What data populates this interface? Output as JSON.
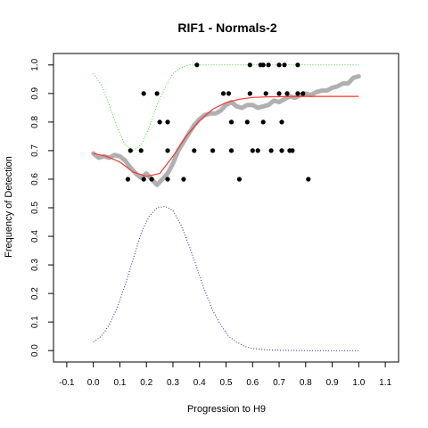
{
  "chart_data": {
    "type": "scatter",
    "title": "RIF1 - Normals-2",
    "xlabel": "Progression to H9",
    "ylabel": "Frequency of Detection",
    "xlim": [
      -0.15,
      1.15
    ],
    "ylim": [
      -0.04,
      1.04
    ],
    "x_ticks": [
      "-0.1",
      "0.0",
      "0.1",
      "0.2",
      "0.3",
      "0.4",
      "0.5",
      "0.6",
      "0.7",
      "0.8",
      "0.9",
      "1.0",
      "1.1"
    ],
    "y_ticks": [
      "0.0",
      "0.1",
      "0.2",
      "0.3",
      "0.4",
      "0.5",
      "0.6",
      "0.7",
      "0.8",
      "0.9",
      "1.0"
    ],
    "grid": false,
    "colors": {
      "points": "#000000",
      "moving_average": "#b0b0b0",
      "fit": "#ff3030",
      "upper_bound": "#33dd33",
      "density": "#2222cc"
    },
    "points": [
      [
        0.13,
        0.6
      ],
      [
        0.14,
        0.7
      ],
      [
        0.19,
        0.6
      ],
      [
        0.18,
        0.7
      ],
      [
        0.19,
        0.9
      ],
      [
        0.24,
        0.9
      ],
      [
        0.25,
        0.8
      ],
      [
        0.22,
        0.6
      ],
      [
        0.28,
        0.8
      ],
      [
        0.28,
        0.6
      ],
      [
        0.28,
        0.7
      ],
      [
        0.34,
        0.6
      ],
      [
        0.38,
        0.7
      ],
      [
        0.39,
        1.0
      ],
      [
        0.45,
        0.7
      ],
      [
        0.49,
        0.9
      ],
      [
        0.51,
        0.9
      ],
      [
        0.52,
        0.8
      ],
      [
        0.52,
        0.7
      ],
      [
        0.55,
        0.6
      ],
      [
        0.58,
        0.8
      ],
      [
        0.59,
        0.9
      ],
      [
        0.59,
        1.0
      ],
      [
        0.6,
        0.7
      ],
      [
        0.62,
        0.7
      ],
      [
        0.63,
        1.0
      ],
      [
        0.64,
        0.8
      ],
      [
        0.64,
        1.0
      ],
      [
        0.65,
        0.9
      ],
      [
        0.66,
        1.0
      ],
      [
        0.67,
        0.7
      ],
      [
        0.7,
        0.9
      ],
      [
        0.7,
        1.0
      ],
      [
        0.71,
        0.8
      ],
      [
        0.71,
        0.7
      ],
      [
        0.72,
        1.0
      ],
      [
        0.73,
        0.9
      ],
      [
        0.74,
        0.7
      ],
      [
        0.75,
        0.7
      ],
      [
        0.77,
        0.9
      ],
      [
        0.77,
        1.0
      ],
      [
        0.79,
        0.9
      ],
      [
        0.81,
        0.6
      ]
    ],
    "moving_average": [
      [
        0.0,
        0.69
      ],
      [
        0.02,
        0.675
      ],
      [
        0.04,
        0.68
      ],
      [
        0.06,
        0.675
      ],
      [
        0.08,
        0.685
      ],
      [
        0.1,
        0.68
      ],
      [
        0.12,
        0.665
      ],
      [
        0.14,
        0.64
      ],
      [
        0.16,
        0.62
      ],
      [
        0.18,
        0.605
      ],
      [
        0.2,
        0.62
      ],
      [
        0.22,
        0.6
      ],
      [
        0.24,
        0.58
      ],
      [
        0.26,
        0.6
      ],
      [
        0.28,
        0.62
      ],
      [
        0.3,
        0.655
      ],
      [
        0.32,
        0.7
      ],
      [
        0.34,
        0.73
      ],
      [
        0.36,
        0.76
      ],
      [
        0.38,
        0.79
      ],
      [
        0.4,
        0.81
      ],
      [
        0.42,
        0.825
      ],
      [
        0.44,
        0.83
      ],
      [
        0.46,
        0.83
      ],
      [
        0.48,
        0.84
      ],
      [
        0.5,
        0.86
      ],
      [
        0.52,
        0.87
      ],
      [
        0.54,
        0.855
      ],
      [
        0.56,
        0.85
      ],
      [
        0.58,
        0.86
      ],
      [
        0.6,
        0.86
      ],
      [
        0.62,
        0.85
      ],
      [
        0.64,
        0.855
      ],
      [
        0.66,
        0.86
      ],
      [
        0.68,
        0.875
      ],
      [
        0.7,
        0.87
      ],
      [
        0.72,
        0.88
      ],
      [
        0.74,
        0.89
      ],
      [
        0.76,
        0.885
      ],
      [
        0.78,
        0.895
      ],
      [
        0.8,
        0.9
      ],
      [
        0.82,
        0.895
      ],
      [
        0.84,
        0.905
      ],
      [
        0.86,
        0.91
      ],
      [
        0.88,
        0.91
      ],
      [
        0.9,
        0.92
      ],
      [
        0.92,
        0.925
      ],
      [
        0.94,
        0.935
      ],
      [
        0.96,
        0.935
      ],
      [
        0.98,
        0.955
      ],
      [
        1.0,
        0.96
      ]
    ],
    "fit": [
      [
        0.0,
        0.69
      ],
      [
        0.05,
        0.68
      ],
      [
        0.1,
        0.66
      ],
      [
        0.15,
        0.625
      ],
      [
        0.2,
        0.61
      ],
      [
        0.25,
        0.62
      ],
      [
        0.3,
        0.68
      ],
      [
        0.35,
        0.75
      ],
      [
        0.4,
        0.805
      ],
      [
        0.45,
        0.845
      ],
      [
        0.5,
        0.868
      ],
      [
        0.55,
        0.88
      ],
      [
        0.6,
        0.886
      ],
      [
        0.65,
        0.888
      ],
      [
        0.7,
        0.889
      ],
      [
        0.8,
        0.89
      ],
      [
        0.9,
        0.89
      ],
      [
        1.0,
        0.89
      ]
    ],
    "upper_bound": [
      [
        0.0,
        0.97
      ],
      [
        0.03,
        0.93
      ],
      [
        0.06,
        0.86
      ],
      [
        0.09,
        0.78
      ],
      [
        0.12,
        0.72
      ],
      [
        0.15,
        0.7
      ],
      [
        0.18,
        0.72
      ],
      [
        0.21,
        0.78
      ],
      [
        0.24,
        0.86
      ],
      [
        0.27,
        0.92
      ],
      [
        0.3,
        0.97
      ],
      [
        0.33,
        0.99
      ],
      [
        0.36,
        1.0
      ],
      [
        0.4,
        1.0
      ],
      [
        0.5,
        1.0
      ],
      [
        0.6,
        1.0
      ],
      [
        0.7,
        1.0
      ],
      [
        0.8,
        1.0
      ],
      [
        0.9,
        1.0
      ],
      [
        1.0,
        1.0
      ]
    ],
    "density": [
      [
        0.0,
        0.03
      ],
      [
        0.03,
        0.05
      ],
      [
        0.06,
        0.09
      ],
      [
        0.09,
        0.15
      ],
      [
        0.12,
        0.23
      ],
      [
        0.15,
        0.32
      ],
      [
        0.18,
        0.41
      ],
      [
        0.21,
        0.47
      ],
      [
        0.24,
        0.5
      ],
      [
        0.27,
        0.505
      ],
      [
        0.3,
        0.49
      ],
      [
        0.33,
        0.44
      ],
      [
        0.36,
        0.37
      ],
      [
        0.39,
        0.29
      ],
      [
        0.42,
        0.21
      ],
      [
        0.45,
        0.14
      ],
      [
        0.48,
        0.09
      ],
      [
        0.51,
        0.05
      ],
      [
        0.54,
        0.03
      ],
      [
        0.57,
        0.015
      ],
      [
        0.6,
        0.007
      ],
      [
        0.65,
        0.003
      ],
      [
        0.7,
        0.001
      ],
      [
        0.8,
        0.0
      ],
      [
        0.9,
        0.0
      ],
      [
        1.0,
        0.0
      ]
    ]
  }
}
